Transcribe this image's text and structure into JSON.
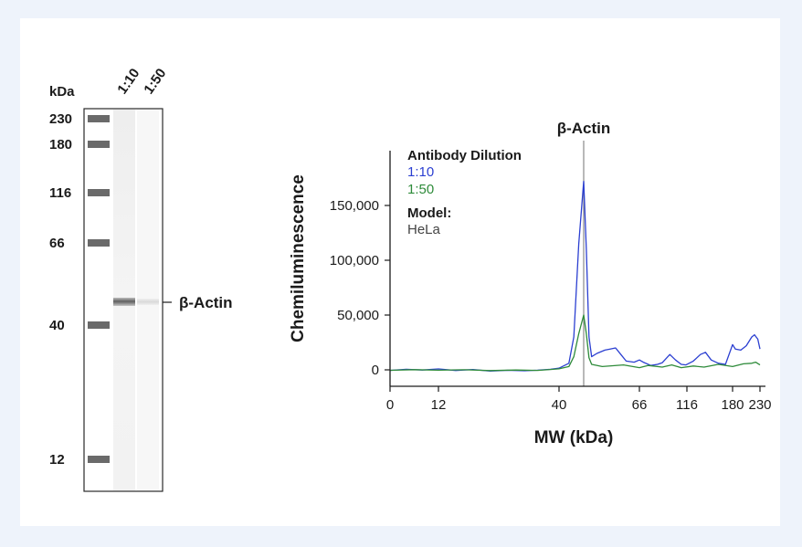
{
  "chart_data": [
    {
      "type": "blot",
      "unit_label": "kDa",
      "lane_labels": [
        "1:10",
        "1:50"
      ],
      "ladder_marks": [
        {
          "label": "230",
          "kda": 230
        },
        {
          "label": "180",
          "kda": 180
        },
        {
          "label": "116",
          "kda": 116
        },
        {
          "label": "66",
          "kda": 66
        },
        {
          "label": "40",
          "kda": 40
        },
        {
          "label": "12",
          "kda": 12
        }
      ],
      "band": {
        "label": "β-Actin",
        "kda": 45
      }
    },
    {
      "type": "line",
      "title": "",
      "xlabel": "MW (kDa)",
      "ylabel": "Chemiluminescence",
      "peak_label": "β-Actin",
      "x_ticks": [
        {
          "label": "0",
          "kda": 0
        },
        {
          "label": "12",
          "kda": 12
        },
        {
          "label": "40",
          "kda": 40
        },
        {
          "label": "66",
          "kda": 66
        },
        {
          "label": "116",
          "kda": 116
        },
        {
          "label": "180",
          "kda": 180
        },
        {
          "label": "230",
          "kda": 230
        }
      ],
      "y_ticks": [
        {
          "label": "0",
          "value": 0
        },
        {
          "label": "50,000",
          "value": 50000
        },
        {
          "label": "100,000",
          "value": 100000
        },
        {
          "label": "150,000",
          "value": 150000
        }
      ],
      "ylim": [
        -5000,
        195000
      ],
      "peak_kda": 45,
      "legend": {
        "title": "Antibody Dilution",
        "model_title": "Model:",
        "model_value": "HeLa"
      },
      "colors": {
        "series_1_10": "#2b3fd1",
        "series_1_50": "#2e8b3a",
        "peak_line": "#8a8a8a"
      },
      "series": [
        {
          "name": "1:10",
          "color": "#2b3fd1",
          "points": [
            [
              0,
              -500
            ],
            [
              4,
              500
            ],
            [
              8,
              -200
            ],
            [
              12,
              800
            ],
            [
              16,
              -600
            ],
            [
              20,
              300
            ],
            [
              24,
              -1200
            ],
            [
              28,
              -400
            ],
            [
              32,
              -800
            ],
            [
              35,
              -300
            ],
            [
              38,
              500
            ],
            [
              40,
              1500
            ],
            [
              42,
              6000
            ],
            [
              43,
              30000
            ],
            [
              44,
              115000
            ],
            [
              45,
              172000
            ],
            [
              46,
              110000
            ],
            [
              47,
              30000
            ],
            [
              48,
              12000
            ],
            [
              50,
              15000
            ],
            [
              53,
              18000
            ],
            [
              55,
              19000
            ],
            [
              57,
              20000
            ],
            [
              59,
              14000
            ],
            [
              61,
              8000
            ],
            [
              64,
              7000
            ],
            [
              66,
              9000
            ],
            [
              70,
              7000
            ],
            [
              78,
              4000
            ],
            [
              85,
              5000
            ],
            [
              90,
              6500
            ],
            [
              98,
              14000
            ],
            [
              104,
              9000
            ],
            [
              110,
              5000
            ],
            [
              115,
              4500
            ],
            [
              125,
              8000
            ],
            [
              135,
              14000
            ],
            [
              142,
              16000
            ],
            [
              150,
              9000
            ],
            [
              160,
              6000
            ],
            [
              170,
              5000
            ],
            [
              180,
              23000
            ],
            [
              185,
              19000
            ],
            [
              195,
              18000
            ],
            [
              205,
              22000
            ],
            [
              215,
              30000
            ],
            [
              220,
              32000
            ],
            [
              226,
              28000
            ],
            [
              230,
              19000
            ]
          ]
        },
        {
          "name": "1:50",
          "color": "#2e8b3a",
          "points": [
            [
              0,
              -400
            ],
            [
              6,
              200
            ],
            [
              12,
              -300
            ],
            [
              18,
              100
            ],
            [
              24,
              -700
            ],
            [
              30,
              -200
            ],
            [
              35,
              -500
            ],
            [
              38,
              300
            ],
            [
              40,
              900
            ],
            [
              42,
              3000
            ],
            [
              43,
              12000
            ],
            [
              44,
              33000
            ],
            [
              45,
              50000
            ],
            [
              46,
              33000
            ],
            [
              47,
              11000
            ],
            [
              48,
              5000
            ],
            [
              52,
              3000
            ],
            [
              60,
              4500
            ],
            [
              66,
              2000
            ],
            [
              75,
              4000
            ],
            [
              90,
              2500
            ],
            [
              100,
              4500
            ],
            [
              110,
              2000
            ],
            [
              125,
              3500
            ],
            [
              140,
              2500
            ],
            [
              160,
              5000
            ],
            [
              180,
              3000
            ],
            [
              200,
              5500
            ],
            [
              215,
              6000
            ],
            [
              222,
              7000
            ],
            [
              230,
              4500
            ]
          ]
        }
      ]
    }
  ]
}
